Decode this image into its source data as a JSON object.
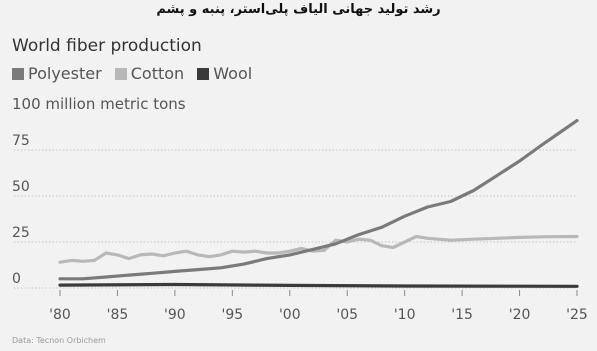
{
  "header": {
    "caption_fa": "رشد تولید جهانی الیاف پلی‌استر، پنبه و پشم"
  },
  "source": "Data: Tecnon Orbichem",
  "chart_data": {
    "type": "line",
    "title": "World fiber production",
    "unit_label": "100 million metric tons",
    "xlabel": "",
    "ylabel": "",
    "xlim": [
      1980,
      2025
    ],
    "ylim": [
      0,
      100
    ],
    "y_ticks": [
      0,
      25,
      50,
      75,
      100
    ],
    "x_ticks": [
      1980,
      1985,
      1990,
      1995,
      2000,
      2005,
      2010,
      2015,
      2020,
      2025
    ],
    "x_tick_labels": [
      "'80",
      "'85",
      "'90",
      "'95",
      "'00",
      "'05",
      "'10",
      "'15",
      "'20",
      "'25"
    ],
    "grid": "horizontal dotted",
    "legend": "top-left",
    "series": [
      {
        "name": "Polyester",
        "color": "#7a7a7a",
        "x": [
          1980,
          1982,
          1984,
          1986,
          1988,
          1990,
          1992,
          1994,
          1996,
          1998,
          2000,
          2002,
          2004,
          2006,
          2008,
          2010,
          2012,
          2014,
          2016,
          2018,
          2020,
          2022,
          2025
        ],
        "values": [
          5,
          5,
          6,
          7,
          8,
          9,
          10,
          11,
          13,
          16,
          18,
          21,
          24,
          29,
          33,
          39,
          44,
          47,
          53,
          61,
          69,
          78,
          91
        ]
      },
      {
        "name": "Cotton",
        "color": "#b8b8b8",
        "x": [
          1980,
          1981,
          1982,
          1983,
          1984,
          1985,
          1986,
          1987,
          1988,
          1989,
          1990,
          1991,
          1992,
          1993,
          1994,
          1995,
          1996,
          1997,
          1998,
          1999,
          2000,
          2001,
          2002,
          2003,
          2004,
          2005,
          2006,
          2007,
          2008,
          2009,
          2010,
          2011,
          2012,
          2014,
          2016,
          2018,
          2020,
          2022,
          2025
        ],
        "values": [
          14,
          15,
          14.5,
          15,
          19,
          18,
          16,
          18,
          18.5,
          17.5,
          19,
          20,
          18,
          17,
          18,
          20,
          19.5,
          20,
          19,
          19,
          20,
          21.5,
          20,
          20.5,
          26,
          25,
          26.5,
          26,
          23,
          22,
          25,
          28,
          27,
          26,
          26.5,
          27,
          27.5,
          27.8,
          28
        ]
      },
      {
        "name": "Wool",
        "color": "#3a3a3a",
        "x": [
          1980,
          1990,
          2000,
          2010,
          2020,
          2025
        ],
        "values": [
          1.6,
          1.9,
          1.4,
          1.1,
          1.0,
          0.9
        ]
      }
    ]
  }
}
